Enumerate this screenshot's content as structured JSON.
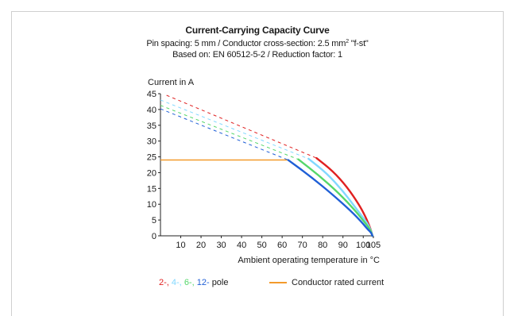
{
  "chart_data": {
    "type": "line",
    "title": "Current-Carrying Capacity Curve",
    "subtitle_line1": {
      "prefix": "Pin spacing: 5 mm / Conductor cross-section: 2.5 mm",
      "sup": "2",
      "suffix": " \"f-st\""
    },
    "subtitle_line2": "Based on: EN 60512-5-2 / Reduction factor: 1",
    "xlabel": "Ambient operating temperature in °C",
    "ylabel": "Current in A",
    "xlim": [
      0,
      105
    ],
    "ylim": [
      0,
      45
    ],
    "x_ticks": [
      10,
      20,
      30,
      40,
      50,
      60,
      70,
      80,
      90,
      100,
      105
    ],
    "y_ticks": [
      0,
      5,
      10,
      15,
      20,
      25,
      30,
      35,
      40,
      45
    ],
    "grid": false,
    "rated_current": {
      "name": "Conductor rated current",
      "value": 24,
      "x_end": 63,
      "color": "#f39a2b"
    },
    "series": [
      {
        "name": "2-",
        "color": "#e02020",
        "dashed": {
          "x": [
            3,
            77
          ],
          "y": [
            44.5,
            24.6
          ]
        },
        "solid": {
          "x": [
            77,
            85,
            92,
            98,
            101,
            103,
            104,
            104.5
          ],
          "y": [
            24.6,
            20.5,
            15.5,
            9.8,
            6.2,
            3.2,
            1.4,
            0
          ]
        }
      },
      {
        "name": "4-",
        "color": "#82d8ff",
        "dashed": {
          "x": [
            0,
            73
          ],
          "y": [
            43,
            24.4
          ]
        },
        "solid": {
          "x": [
            73,
            82,
            90,
            97,
            101,
            103,
            104,
            104.5
          ],
          "y": [
            24.4,
            19.8,
            14.2,
            8.2,
            4.9,
            2.8,
            1.3,
            0
          ]
        }
      },
      {
        "name": "6-",
        "color": "#55d76a",
        "dashed": {
          "x": [
            0,
            68
          ],
          "y": [
            41.3,
            24.2
          ]
        },
        "solid": {
          "x": [
            68,
            78,
            88,
            96,
            100,
            103,
            104,
            104.5
          ],
          "y": [
            24.2,
            19.2,
            13.5,
            8.0,
            4.8,
            2.4,
            1.1,
            0
          ]
        }
      },
      {
        "name": "12-",
        "color": "#1f5fd6",
        "dashed": {
          "x": [
            0,
            63
          ],
          "y": [
            40.2,
            24.0
          ]
        },
        "solid": {
          "x": [
            63,
            74,
            85,
            94,
            99,
            102,
            104,
            104.5
          ],
          "y": [
            24.0,
            18.8,
            13.0,
            7.8,
            4.5,
            2.2,
            0.9,
            0
          ]
        }
      }
    ],
    "legend": {
      "pole_suffix": "pole",
      "pole_labels": [
        {
          "text": "2-,",
          "color": "#e02020"
        },
        {
          "text": "4-,",
          "color": "#82d8ff"
        },
        {
          "text": "6-,",
          "color": "#55d76a"
        },
        {
          "text": "12-",
          "color": "#1f5fd6"
        }
      ],
      "rated_label": "Conductor rated current"
    }
  }
}
